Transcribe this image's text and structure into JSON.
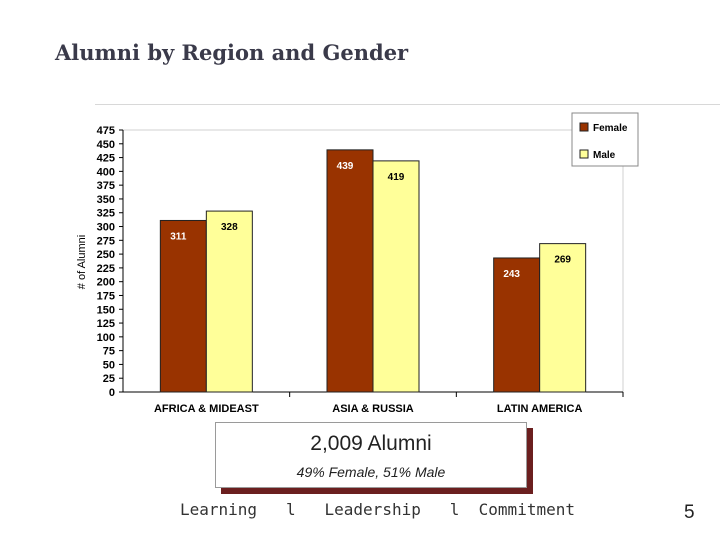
{
  "slide": {
    "title": "Alumni by Region and Gender",
    "page_number": "5"
  },
  "callout": {
    "main": "2,009 Alumni",
    "sub": "49% Female, 51% Male"
  },
  "footer": {
    "items": [
      "Learning",
      "Leadership",
      "Commitment"
    ],
    "separator": "l"
  },
  "chart_data": {
    "type": "bar",
    "ylabel": "# of Alumni",
    "xlabel": "",
    "title": "",
    "ylim": [
      0,
      475
    ],
    "y_ticks": [
      0,
      25,
      50,
      75,
      100,
      125,
      150,
      175,
      200,
      225,
      250,
      275,
      300,
      325,
      350,
      375,
      400,
      425,
      450,
      475
    ],
    "categories": [
      "AFRICA & MIDEAST",
      "ASIA & RUSSIA",
      "LATIN AMERICA"
    ],
    "series": [
      {
        "name": "Female",
        "values": [
          311,
          439,
          243
        ],
        "color": "#993300"
      },
      {
        "name": "Male",
        "values": [
          328,
          419,
          269
        ],
        "color": "#ffff99"
      }
    ],
    "data_labels": true,
    "grid": false,
    "legend": "top-right"
  }
}
